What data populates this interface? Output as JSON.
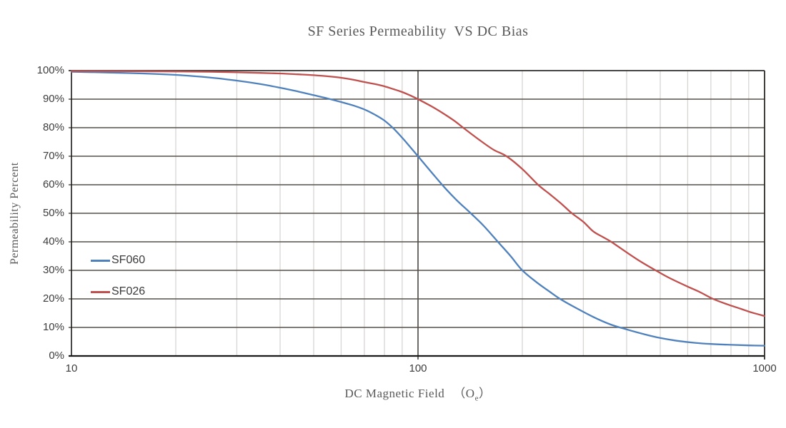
{
  "chart": {
    "title": "SF Series Permeability  VS DC Bias",
    "y_axis": {
      "title": "Permeability Percent"
    },
    "x_axis": {
      "title": "DC Magnetic Field",
      "unit_open": "（O",
      "unit_sub": "e",
      "unit_close": "）"
    }
  },
  "chart_data": {
    "type": "line",
    "title": "SF Series Permeability  VS DC Bias",
    "xlabel": "DC Magnetic Field (Oe)",
    "ylabel": "Permeability Percent",
    "x_scale": "log",
    "xlim": [
      10,
      1000
    ],
    "ylim": [
      0,
      100
    ],
    "grid": true,
    "legend_position": "inside-left",
    "x_ticks": {
      "values": [
        10,
        100,
        1000
      ],
      "labels": [
        "10",
        "100",
        "1000"
      ]
    },
    "y_ticks": {
      "values": [
        0,
        10,
        20,
        30,
        40,
        50,
        60,
        70,
        80,
        90,
        100
      ],
      "labels": [
        "0%",
        "10%",
        "20%",
        "30%",
        "40%",
        "50%",
        "60%",
        "70%",
        "80%",
        "90%",
        "100%"
      ]
    },
    "series": [
      {
        "name": "SF060",
        "color": "#4F81BD",
        "points": [
          [
            10,
            99.6
          ],
          [
            13,
            99.3
          ],
          [
            16,
            99.0
          ],
          [
            20,
            98.5
          ],
          [
            25,
            97.6
          ],
          [
            30,
            96.5
          ],
          [
            35,
            95.3
          ],
          [
            40,
            94.0
          ],
          [
            45,
            92.7
          ],
          [
            50,
            91.4
          ],
          [
            55,
            90.2
          ],
          [
            60,
            89.0
          ],
          [
            65,
            87.8
          ],
          [
            70,
            86.4
          ],
          [
            75,
            84.6
          ],
          [
            80,
            82.5
          ],
          [
            85,
            79.7
          ],
          [
            90,
            76.5
          ],
          [
            95,
            73.2
          ],
          [
            100,
            70.0
          ],
          [
            110,
            64.0
          ],
          [
            120,
            58.7
          ],
          [
            130,
            54.3
          ],
          [
            142,
            50.0
          ],
          [
            155,
            45.5
          ],
          [
            170,
            40.0
          ],
          [
            185,
            35.0
          ],
          [
            200,
            30.0
          ],
          [
            220,
            25.8
          ],
          [
            240,
            22.5
          ],
          [
            257,
            20.0
          ],
          [
            280,
            17.4
          ],
          [
            320,
            13.7
          ],
          [
            360,
            11.0
          ],
          [
            400,
            9.3
          ],
          [
            450,
            7.6
          ],
          [
            500,
            6.3
          ],
          [
            560,
            5.3
          ],
          [
            630,
            4.6
          ],
          [
            700,
            4.2
          ],
          [
            800,
            3.9
          ],
          [
            900,
            3.7
          ],
          [
            1000,
            3.6
          ]
        ]
      },
      {
        "name": "SF026",
        "color": "#C0504D",
        "points": [
          [
            10,
            99.8
          ],
          [
            15,
            99.8
          ],
          [
            20,
            99.7
          ],
          [
            25,
            99.6
          ],
          [
            30,
            99.4
          ],
          [
            35,
            99.2
          ],
          [
            40,
            99.0
          ],
          [
            45,
            98.7
          ],
          [
            50,
            98.4
          ],
          [
            55,
            98.0
          ],
          [
            60,
            97.5
          ],
          [
            65,
            96.8
          ],
          [
            70,
            96.0
          ],
          [
            75,
            95.3
          ],
          [
            80,
            94.5
          ],
          [
            85,
            93.5
          ],
          [
            90,
            92.5
          ],
          [
            95,
            91.3
          ],
          [
            100,
            90.0
          ],
          [
            110,
            87.3
          ],
          [
            120,
            84.5
          ],
          [
            128,
            82.2
          ],
          [
            135,
            80.0
          ],
          [
            150,
            75.8
          ],
          [
            165,
            72.3
          ],
          [
            180,
            70.0
          ],
          [
            200,
            65.5
          ],
          [
            222,
            60.0
          ],
          [
            240,
            56.7
          ],
          [
            260,
            53.2
          ],
          [
            278,
            50.0
          ],
          [
            300,
            47.0
          ],
          [
            320,
            43.7
          ],
          [
            340,
            41.8
          ],
          [
            361,
            40.0
          ],
          [
            400,
            36.3
          ],
          [
            440,
            33.0
          ],
          [
            485,
            30.0
          ],
          [
            530,
            27.4
          ],
          [
            600,
            24.3
          ],
          [
            650,
            22.4
          ],
          [
            710,
            20.0
          ],
          [
            780,
            18.1
          ],
          [
            850,
            16.6
          ],
          [
            920,
            15.2
          ],
          [
            1000,
            14.0
          ]
        ]
      }
    ],
    "colors": {
      "grid_dark": "#55504b",
      "grid_light": "#d8d6d4",
      "axis": "#1a1a1a",
      "border_dark": "#2e2b29",
      "tick_text": "#3d3d3d",
      "title_text": "#595959"
    }
  }
}
